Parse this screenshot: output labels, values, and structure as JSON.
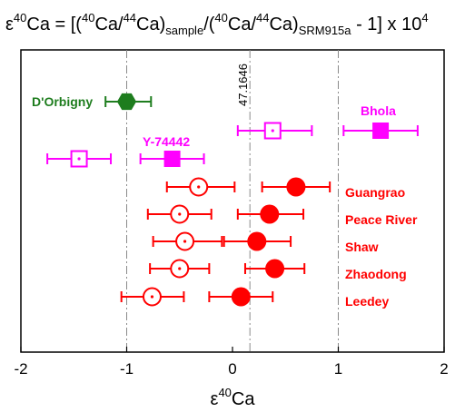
{
  "chart_data": {
    "type": "scatter",
    "title": {
      "base": "ε",
      "sup1": "40",
      "t1": "Ca = [(",
      "sup2": "40",
      "t2": "Ca/",
      "sup3": "44",
      "t3": "Ca)",
      "sub1": "sample",
      "t4": "/(",
      "sup4": "40",
      "t5": "Ca/",
      "sup5": "44",
      "t6": "Ca)",
      "sub2": "SRM915a",
      "t7": " - 1] x 10",
      "sup6": "4"
    },
    "xlabel": {
      "base": "ε",
      "sup": "40",
      "rest": "Ca"
    },
    "xlim": [
      -2,
      2
    ],
    "x_ticks": [
      -2,
      -1,
      0,
      1,
      2
    ],
    "x_tick_labels": [
      "-2",
      "-1",
      "0",
      "1",
      "2"
    ],
    "reference_lines": [
      {
        "x": -1,
        "style": "dash-dot"
      },
      {
        "x": 0.1646,
        "style": "dash-dot",
        "label": "47.1646"
      },
      {
        "x": 1,
        "style": "dash-dot"
      }
    ],
    "colors": {
      "green": "#1e7d1e",
      "magenta": "#ff00ff",
      "red": "#ff0000"
    },
    "rows": [
      {
        "label": "D'Orbigny",
        "color": "#1e7d1e",
        "points": [
          {
            "x": -1.0,
            "xmin": -1.2,
            "xmax": -0.77,
            "marker": "hexagon-filled"
          }
        ]
      },
      {
        "label": "Bhola",
        "color": "#ff00ff",
        "points": [
          {
            "x": 0.38,
            "xmin": 0.05,
            "xmax": 0.75,
            "marker": "square-open"
          },
          {
            "x": 1.4,
            "xmin": 1.05,
            "xmax": 1.75,
            "marker": "square-filled"
          }
        ]
      },
      {
        "label": "Y-74442",
        "color": "#ff00ff",
        "points": [
          {
            "x": -1.45,
            "xmin": -1.75,
            "xmax": -1.15,
            "marker": "square-open"
          },
          {
            "x": -0.57,
            "xmin": -0.87,
            "xmax": -0.27,
            "marker": "square-filled"
          }
        ]
      },
      {
        "label": "Guangrao",
        "color": "#ff0000",
        "points": [
          {
            "x": -0.32,
            "xmin": -0.62,
            "xmax": 0.02,
            "marker": "circle-open"
          },
          {
            "x": 0.6,
            "xmin": 0.28,
            "xmax": 0.92,
            "marker": "circle-filled"
          }
        ]
      },
      {
        "label": "Peace River",
        "color": "#ff0000",
        "points": [
          {
            "x": -0.5,
            "xmin": -0.8,
            "xmax": -0.2,
            "marker": "circle-open"
          },
          {
            "x": 0.35,
            "xmin": 0.05,
            "xmax": 0.67,
            "marker": "circle-filled"
          }
        ]
      },
      {
        "label": "Shaw",
        "color": "#ff0000",
        "points": [
          {
            "x": -0.45,
            "xmin": -0.75,
            "xmax": -0.1,
            "marker": "circle-open"
          },
          {
            "x": 0.23,
            "xmin": -0.08,
            "xmax": 0.55,
            "marker": "circle-filled"
          }
        ]
      },
      {
        "label": "Zhaodong",
        "color": "#ff0000",
        "points": [
          {
            "x": -0.5,
            "xmin": -0.78,
            "xmax": -0.22,
            "marker": "circle-open"
          },
          {
            "x": 0.4,
            "xmin": 0.12,
            "xmax": 0.68,
            "marker": "circle-filled"
          }
        ]
      },
      {
        "label": "Leedey",
        "color": "#ff0000",
        "points": [
          {
            "x": -0.76,
            "xmin": -1.05,
            "xmax": -0.46,
            "marker": "circle-open"
          },
          {
            "x": 0.08,
            "xmin": -0.22,
            "xmax": 0.38,
            "marker": "circle-filled"
          }
        ]
      }
    ]
  }
}
